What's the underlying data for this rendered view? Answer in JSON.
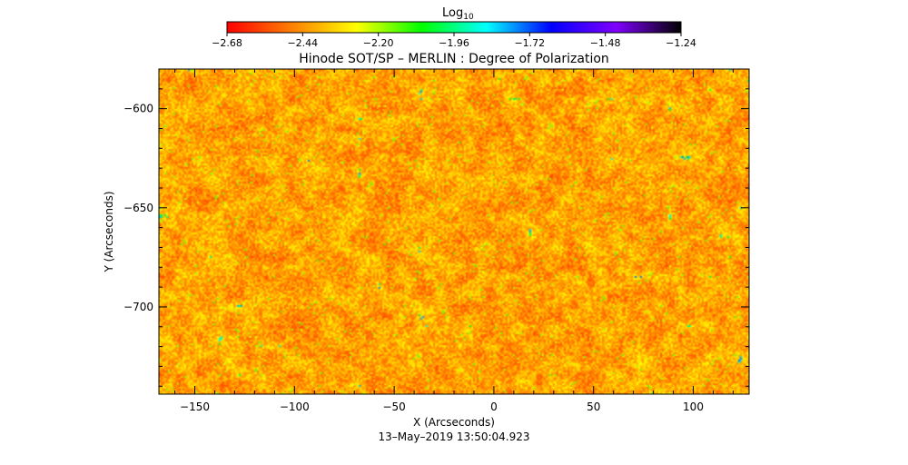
{
  "chart_data": {
    "type": "heatmap",
    "title": "Hinode SOT/SP – MERLIN : Degree of Polarization",
    "xlabel": "X (Arcseconds)",
    "ylabel": "Y (Arcseconds)",
    "xlim": [
      -168,
      128
    ],
    "ylim": [
      -744,
      -580
    ],
    "x_ticks": [
      -150,
      -100,
      -50,
      0,
      50,
      100
    ],
    "x_tick_labels": [
      "−150",
      "−100",
      "−50",
      "0",
      "50",
      "100"
    ],
    "y_ticks": [
      -600,
      -650,
      -700
    ],
    "y_tick_labels": [
      "−600",
      "−650",
      "−700"
    ],
    "timestamp": "13–May–2019 13:50:04.923",
    "colorbar": {
      "title": "Log",
      "title_sub": "10",
      "range": [
        -2.68,
        -1.24
      ],
      "tick_values": [
        -2.68,
        -2.44,
        -2.2,
        -1.96,
        -1.72,
        -1.48,
        -1.24
      ],
      "tick_labels": [
        "−2.68",
        "−2.44",
        "−2.20",
        "−1.96",
        "−1.72",
        "−1.48",
        "−1.24"
      ],
      "colors": [
        "#ff0000",
        "#ff7f00",
        "#ffff00",
        "#00ff00",
        "#00ffff",
        "#0000ff",
        "#8000ff",
        "#000000"
      ]
    },
    "field_value_range": [
      -2.68,
      -2.35
    ],
    "dominant_color": "#ff6a00"
  }
}
